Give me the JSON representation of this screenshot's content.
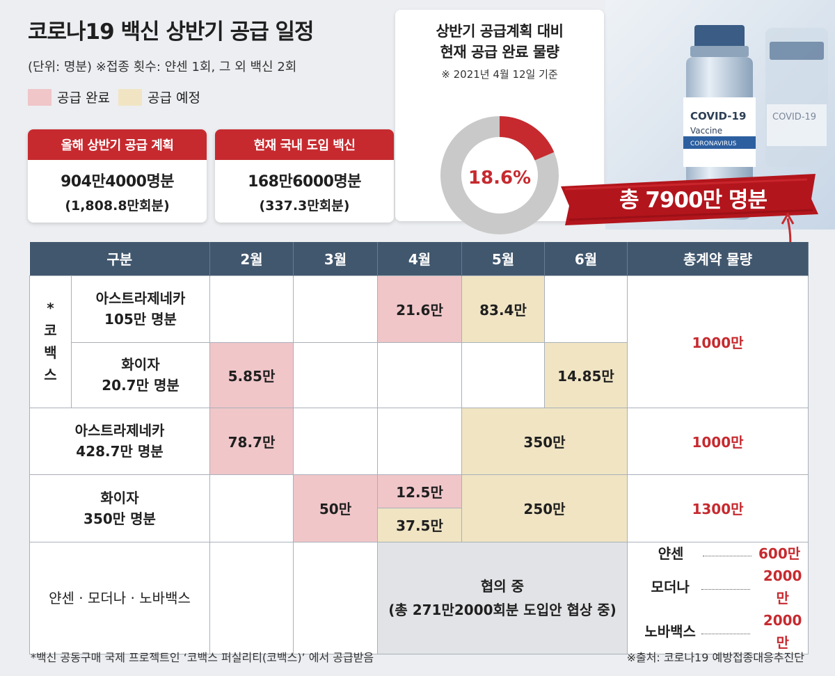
{
  "title": "코로나19 백신 상반기 공급 일정",
  "unit_note": "(단위: 명분) ※접종 횟수: 얀센 1회, 그 외 백신 2회",
  "legend": [
    {
      "label": "공급 완료",
      "color": "#f0c6c9"
    },
    {
      "label": "공급 예정",
      "color": "#f0e4c3"
    }
  ],
  "stats": [
    {
      "head": "올해 상반기 공급 계획",
      "main": "904만4000명분",
      "sub": "(1,808.8만회분)"
    },
    {
      "head": "현재 국내 도입 백신",
      "main": "168만6000명분",
      "sub": "(337.3만회분)"
    }
  ],
  "gauge": {
    "title1": "상반기 공급계획 대비",
    "title2": "현재 공급 완료 물량",
    "note": "※ 2021년 4월 12일 기준",
    "value_label": "18.6%",
    "percent": 18.6
  },
  "photo": {
    "vial_label1": "COVID-19",
    "vial_label2": "Vaccine",
    "vial_label3": "CORONAVIRUS",
    "vial2_label": "COVID-19"
  },
  "banner": "총 7900만 명분",
  "colors": {
    "red": "#c62a2f",
    "header": "#41576e",
    "done": "#f0c6c9",
    "planned": "#f0e4c3"
  },
  "chart_data": {
    "type": "table",
    "columns": [
      "구분",
      "2월",
      "3월",
      "4월",
      "5월",
      "6월",
      "총계약 물량"
    ],
    "group_label": "* 코 백 스",
    "rows": {
      "covax_az": {
        "name": "아스트라제네카",
        "amount": "105만 명분",
        "apr": "21.6만",
        "may": "83.4만"
      },
      "covax_pfizer": {
        "name": "화이자",
        "amount": "20.7만 명분",
        "feb": "5.85만",
        "jun": "14.85만"
      },
      "covax_total": "1000만",
      "az": {
        "name": "아스트라제네카",
        "amount": "428.7만 명분",
        "feb": "78.7만",
        "may_jun": "350만",
        "total": "1000만"
      },
      "pfizer": {
        "name": "화이자",
        "amount": "350만 명분",
        "mar": "50만",
        "apr_done": "12.5만",
        "apr_planned": "37.5만",
        "may_jun": "250만",
        "total": "1300만"
      },
      "others": {
        "name": "얀센 · 모더나 · 노바백스",
        "negotiation": "협의 중",
        "negotiation_note": "(총 271만2000회분 도입안 협상 중)",
        "totals": [
          {
            "name": "얀센",
            "value": "600만"
          },
          {
            "name": "모더나",
            "value": "2000만"
          },
          {
            "name": "노바백스",
            "value": "2000만"
          }
        ]
      }
    }
  },
  "footnote": "*백신 공동구매 국제 프로젝트인 ‘코백스 퍼실리티(코백스)’ 에서 공급받음",
  "source": "※출처: 코로나19 예방접종대응추진단"
}
